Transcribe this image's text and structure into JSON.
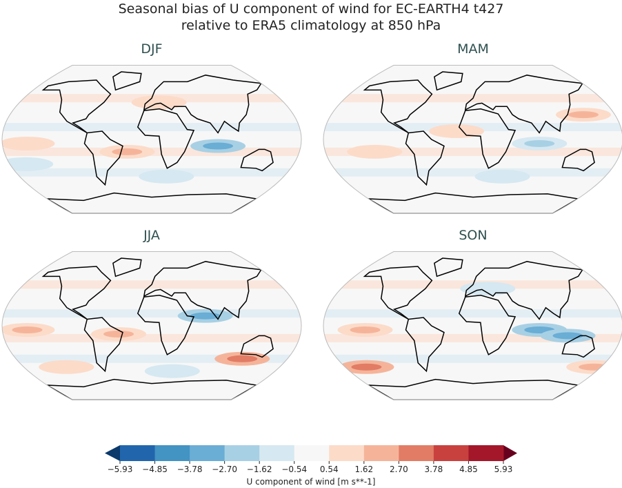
{
  "title": {
    "line1": "Seasonal bias of U component of wind for EC-EARTH4 t427",
    "line2": "relative to ERA5 climatology at 850 hPa"
  },
  "chart_data": {
    "type": "map",
    "projection": "Robinson",
    "panels": [
      {
        "label": "DJF",
        "anomalies": [
          {
            "lon": 80,
            "lat": -8,
            "value": -3.0
          },
          {
            "lon": -30,
            "lat": -15,
            "value": 2.0
          },
          {
            "lon": -150,
            "lat": -5,
            "value": 1.6
          },
          {
            "lon": -160,
            "lat": -30,
            "value": -1.6
          },
          {
            "lon": 20,
            "lat": -45,
            "value": -1.6
          },
          {
            "lon": 10,
            "lat": 45,
            "value": 1.6
          }
        ]
      },
      {
        "label": "MAM",
        "anomalies": [
          {
            "lon": 80,
            "lat": -5,
            "value": -2.5
          },
          {
            "lon": 140,
            "lat": 30,
            "value": 1.8
          },
          {
            "lon": -120,
            "lat": -15,
            "value": 1.6
          },
          {
            "lon": 40,
            "lat": -45,
            "value": -1.6
          },
          {
            "lon": -20,
            "lat": 10,
            "value": 1.6
          }
        ]
      },
      {
        "label": "JJA",
        "anomalies": [
          {
            "lon": 65,
            "lat": 12,
            "value": -2.8
          },
          {
            "lon": -150,
            "lat": -5,
            "value": 2.2
          },
          {
            "lon": 120,
            "lat": -40,
            "value": 3.0
          },
          {
            "lon": -40,
            "lat": -10,
            "value": 2.0
          },
          {
            "lon": -120,
            "lat": -50,
            "value": 1.6
          },
          {
            "lon": 30,
            "lat": -55,
            "value": -1.6
          }
        ]
      },
      {
        "label": "SON",
        "anomalies": [
          {
            "lon": 80,
            "lat": -5,
            "value": -3.2
          },
          {
            "lon": 115,
            "lat": -12,
            "value": -2.8
          },
          {
            "lon": -150,
            "lat": -50,
            "value": 3.2
          },
          {
            "lon": -130,
            "lat": -5,
            "value": 2.5
          },
          {
            "lon": 170,
            "lat": -50,
            "value": 2.5
          },
          {
            "lon": 20,
            "lat": 45,
            "value": -1.6
          }
        ]
      }
    ],
    "colorbar": {
      "label": "U component of wind [m s**-1]",
      "ticks": [
        "−5.93",
        "−4.85",
        "−3.78",
        "−2.70",
        "−1.62",
        "−0.54",
        "0.54",
        "1.62",
        "2.70",
        "3.78",
        "4.85",
        "5.93"
      ],
      "levels": [
        -5.93,
        -4.85,
        -3.78,
        -2.7,
        -1.62,
        -0.54,
        0.54,
        1.62,
        2.7,
        3.78,
        4.85,
        5.93
      ],
      "colors": [
        "#0b3a6b",
        "#2166ac",
        "#4393c3",
        "#6aadd5",
        "#a8d0e4",
        "#d6e8f1",
        "#f7f7f7",
        "#fcdbc9",
        "#f5b49a",
        "#e27c65",
        "#c9413f",
        "#a4172a",
        "#67001f"
      ],
      "extend": "both"
    }
  }
}
